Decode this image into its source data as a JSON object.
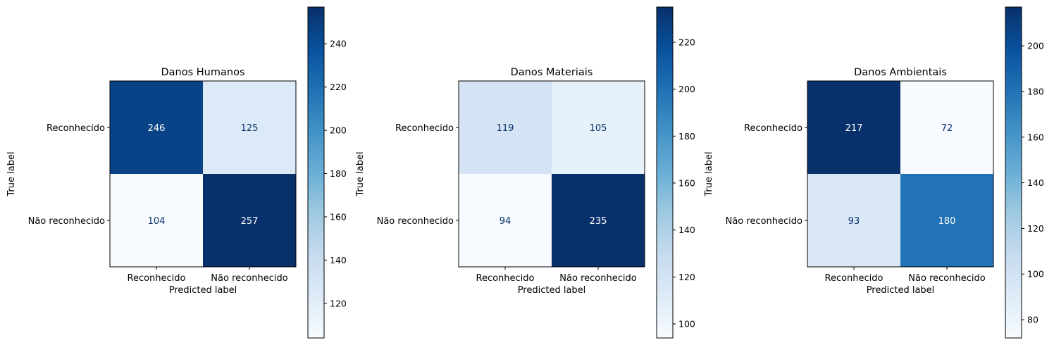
{
  "chart_data": [
    {
      "type": "heatmap",
      "title": "Danos Humanos",
      "xlabel": "Predicted label",
      "ylabel": "True label",
      "x_categories": [
        "Reconhecido",
        "Não reconhecido"
      ],
      "y_categories": [
        "Reconhecido",
        "Não reconhecido"
      ],
      "values": [
        [
          246,
          125
        ],
        [
          104,
          257
        ]
      ],
      "colormap": "Blues",
      "colorbar": {
        "range": [
          104,
          257
        ],
        "ticks": [
          120,
          140,
          160,
          180,
          200,
          220,
          240
        ]
      }
    },
    {
      "type": "heatmap",
      "title": "Danos Materiais",
      "xlabel": "Predicted label",
      "ylabel": "True label",
      "x_categories": [
        "Reconhecido",
        "Não reconhecido"
      ],
      "y_categories": [
        "Reconhecido",
        "Não reconhecido"
      ],
      "values": [
        [
          119,
          105
        ],
        [
          94,
          235
        ]
      ],
      "colormap": "Blues",
      "colorbar": {
        "range": [
          94,
          235
        ],
        "ticks": [
          100,
          120,
          140,
          160,
          180,
          200,
          220
        ]
      }
    },
    {
      "type": "heatmap",
      "title": "Danos Ambientais",
      "xlabel": "Predicted label",
      "ylabel": "True label",
      "x_categories": [
        "Reconhecido",
        "Não reconhecido"
      ],
      "y_categories": [
        "Reconhecido",
        "Não reconhecido"
      ],
      "values": [
        [
          217,
          72
        ],
        [
          93,
          180
        ]
      ],
      "colormap": "Blues",
      "colorbar": {
        "range": [
          72,
          217
        ],
        "ticks": [
          80,
          100,
          120,
          140,
          160,
          180,
          200
        ]
      }
    }
  ]
}
